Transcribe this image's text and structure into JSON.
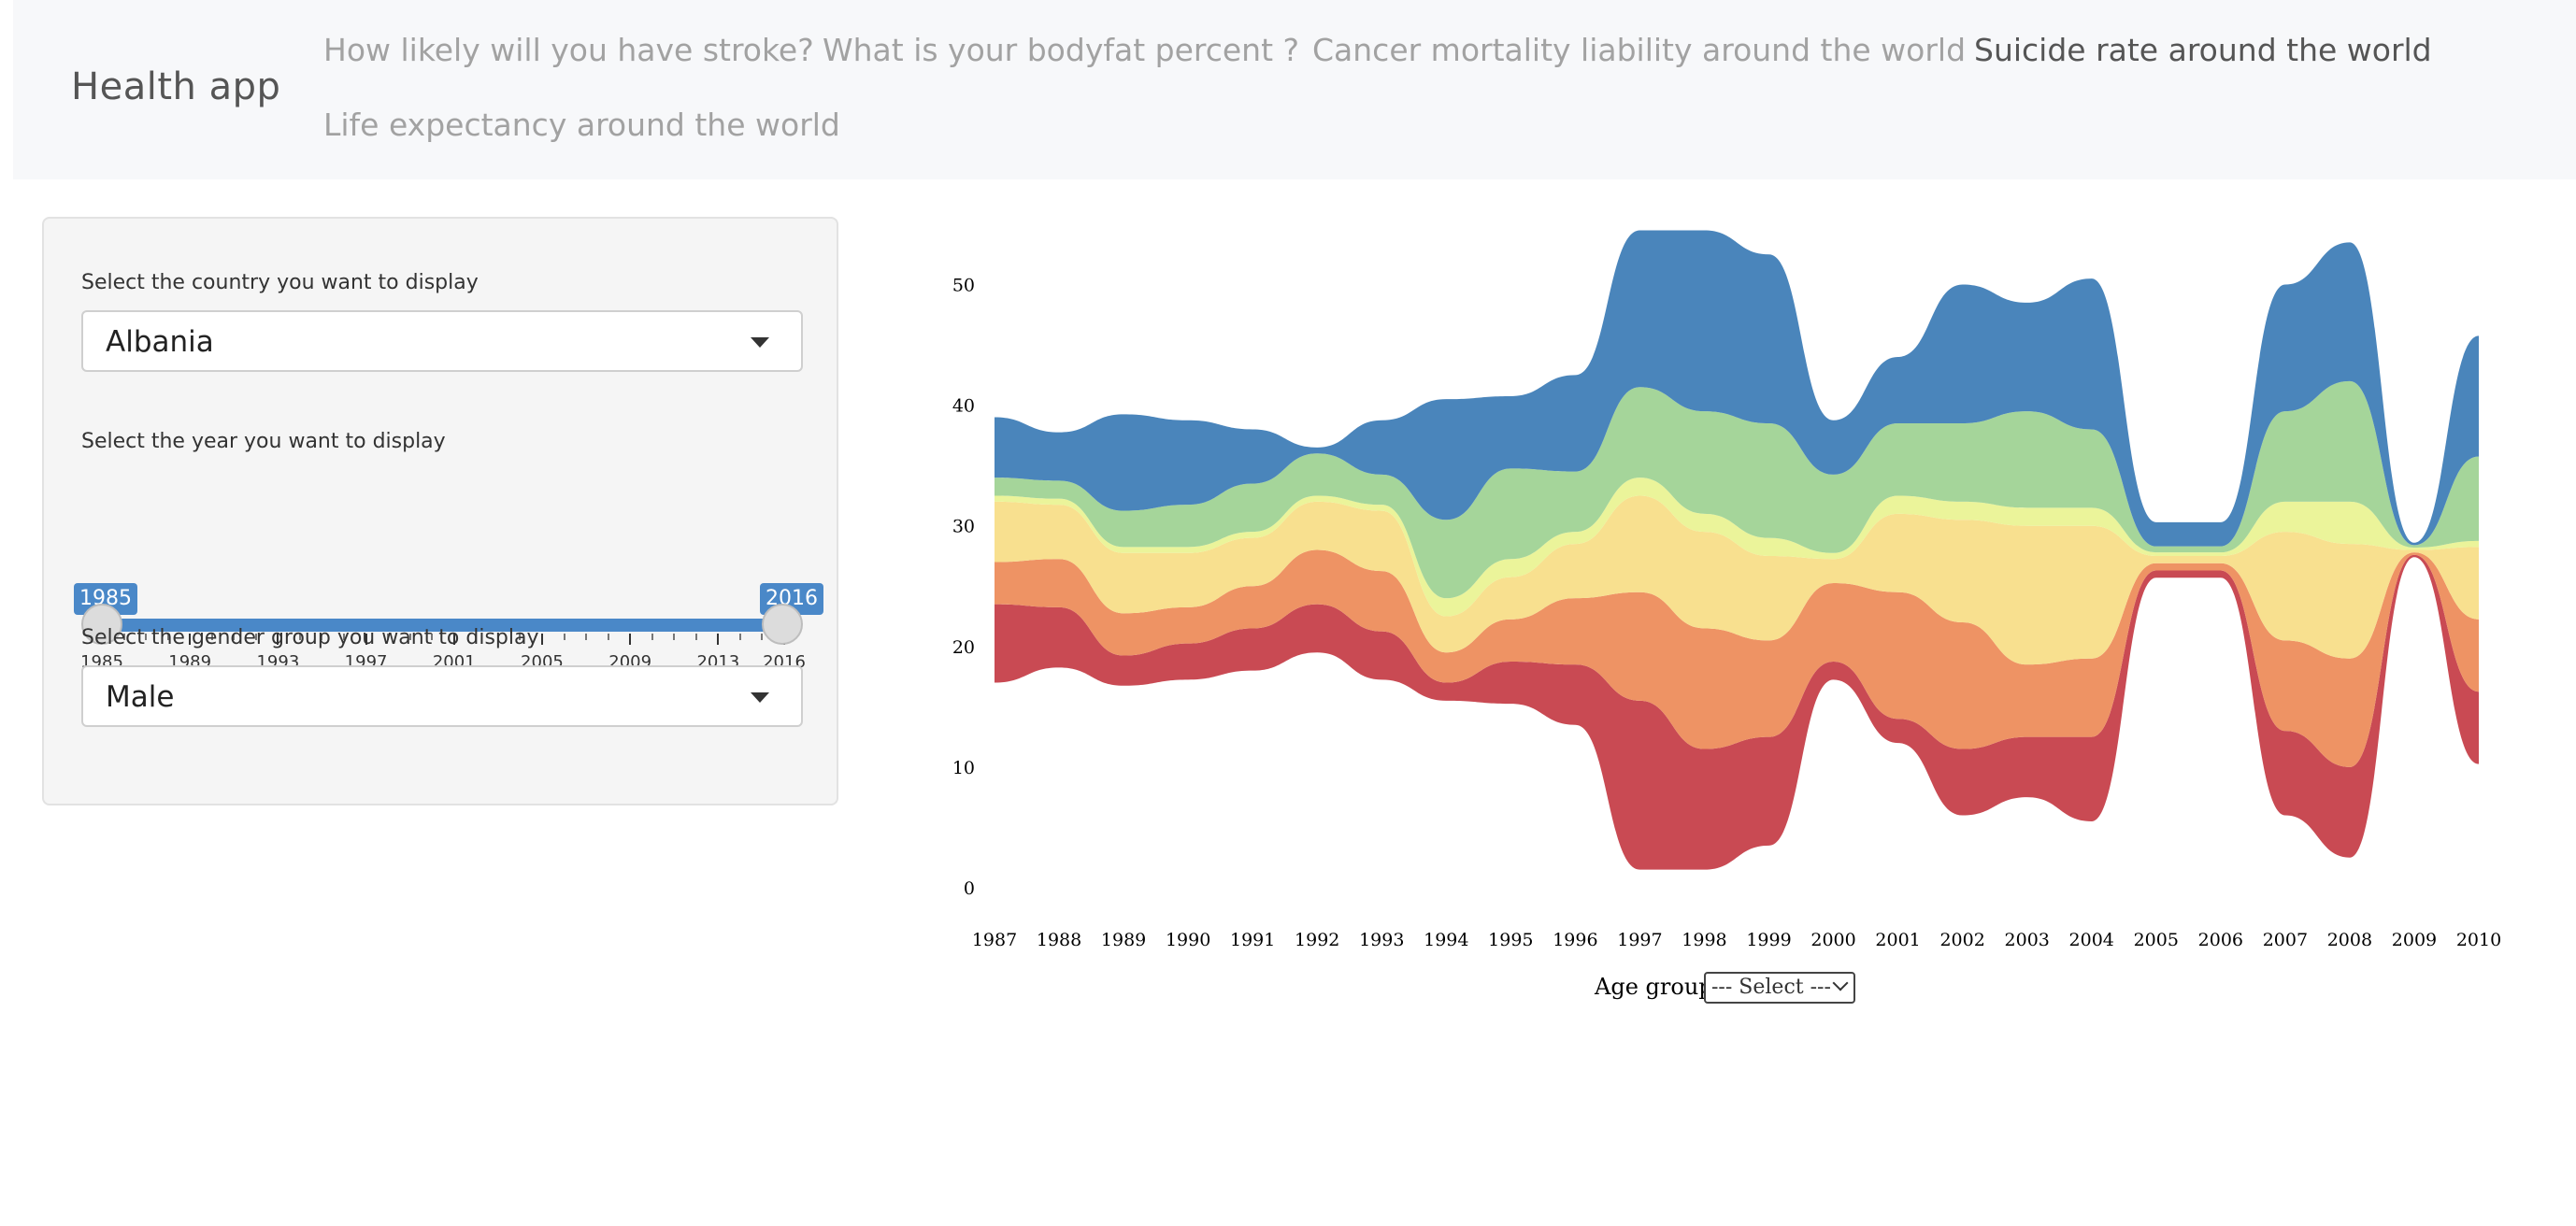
{
  "navbar": {
    "brand": "Health app",
    "links": [
      {
        "label": "How likely will you have stroke?",
        "active": false
      },
      {
        "label": "What is your bodyfat percent ?",
        "active": false
      },
      {
        "label": "Cancer mortality liability around the world",
        "active": false
      },
      {
        "label": "Suicide rate around the world",
        "active": true
      },
      {
        "label": "Life expectancy around the world",
        "active": false
      }
    ]
  },
  "sidebar": {
    "country_label": "Select the country you want to display",
    "country_value": "Albania",
    "year_label": "Select the year you want to display",
    "year_min": 1985,
    "year_max": 2016,
    "year_from": "1985",
    "year_to": "2016",
    "year_ticks": [
      "1985",
      "1989",
      "1993",
      "1997",
      "2001",
      "2005",
      "2009",
      "2013",
      "2016"
    ],
    "gender_label": "Select the gender group you want to display",
    "gender_value": "Male"
  },
  "age_group": {
    "label": "Age group:",
    "value": "--- Select ---"
  },
  "chart_data": {
    "type": "area",
    "categories": [
      "1987",
      "1988",
      "1989",
      "1990",
      "1991",
      "1992",
      "1993",
      "1994",
      "1995",
      "1996",
      "1997",
      "1998",
      "1999",
      "2000",
      "2001",
      "2002",
      "2003",
      "2004",
      "2005",
      "2006",
      "2007",
      "2008",
      "2009",
      "2010"
    ],
    "ylim": [
      0,
      55
    ],
    "yticks": [
      "0",
      "10",
      "20",
      "30",
      "40",
      "50"
    ],
    "colors": [
      "#c94a53",
      "#ee9364",
      "#f8e08f",
      "#ebf49a",
      "#a5d59a",
      "#4a85bb"
    ],
    "series": [
      {
        "values": [
          6.5,
          5.0,
          2.5,
          3.0,
          3.5,
          4.0,
          4.0,
          1.5,
          3.5,
          5.0,
          14.0,
          10.0,
          9.0,
          1.5,
          2.0,
          5.5,
          5.0,
          7.0,
          0.6,
          0.6,
          7.0,
          7.5,
          0.2,
          6.0
        ]
      },
      {
        "values": [
          3.5,
          4.0,
          3.5,
          3.0,
          3.5,
          4.5,
          5.0,
          2.5,
          3.5,
          5.5,
          9.0,
          10.0,
          8.0,
          6.5,
          10.5,
          10.5,
          6.0,
          6.5,
          0.6,
          0.6,
          7.5,
          9.0,
          0.2,
          6.0
        ]
      },
      {
        "values": [
          5.0,
          4.5,
          5.0,
          4.5,
          4.0,
          4.0,
          5.0,
          3.0,
          3.5,
          4.5,
          8.0,
          8.0,
          7.0,
          2.0,
          6.5,
          8.5,
          11.5,
          11.0,
          0.6,
          0.6,
          9.0,
          9.5,
          0.2,
          6.0
        ]
      },
      {
        "values": [
          0.5,
          0.5,
          0.5,
          0.5,
          0.5,
          0.5,
          0.5,
          1.5,
          1.5,
          1.0,
          1.5,
          1.5,
          1.5,
          0.5,
          1.5,
          1.5,
          1.5,
          1.5,
          0.3,
          0.3,
          2.5,
          3.5,
          0.2,
          0.5
        ]
      },
      {
        "values": [
          1.5,
          1.5,
          3.0,
          3.5,
          4.0,
          3.5,
          2.5,
          6.5,
          7.5,
          5.0,
          7.5,
          8.5,
          9.5,
          6.5,
          6.0,
          6.5,
          8.0,
          6.5,
          0.5,
          0.5,
          7.5,
          10.0,
          0.2,
          7.0
        ]
      },
      {
        "values": [
          5.0,
          4.0,
          8.0,
          7.0,
          4.5,
          0.5,
          4.5,
          10.0,
          6.0,
          8.0,
          13.0,
          15.0,
          14.0,
          4.5,
          5.5,
          11.5,
          9.0,
          12.5,
          2.0,
          2.0,
          10.5,
          11.5,
          0.2,
          10.0
        ]
      }
    ]
  }
}
